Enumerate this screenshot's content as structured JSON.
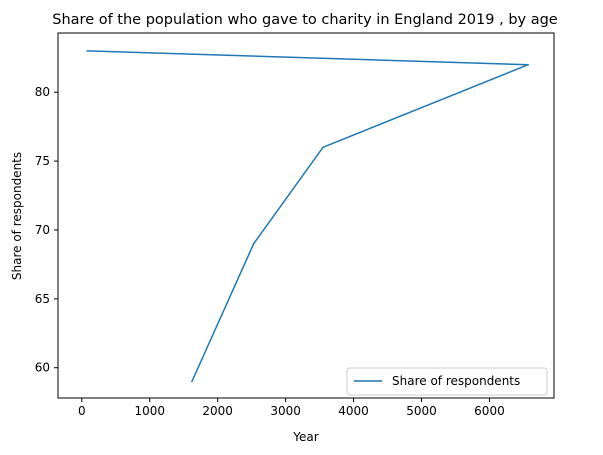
{
  "chart_data": {
    "type": "line",
    "title": "Share of the population who gave to charity in England 2019 , by age",
    "xlabel": "Year",
    "ylabel": "Share of respondents",
    "xlim": [
      -350,
      6950
    ],
    "ylim": [
      57.8,
      84.3
    ],
    "x_ticks": [
      0,
      1000,
      2000,
      3000,
      4000,
      5000,
      6000
    ],
    "y_ticks": [
      60,
      65,
      70,
      75,
      80
    ],
    "grid": false,
    "legend_position": "lower right",
    "series": [
      {
        "name": "Share of respondents",
        "color": "#1f77b4",
        "x": [
          80,
          6570,
          3550,
          2530,
          1620
        ],
        "y": [
          83,
          82,
          76,
          69,
          59
        ]
      }
    ]
  }
}
